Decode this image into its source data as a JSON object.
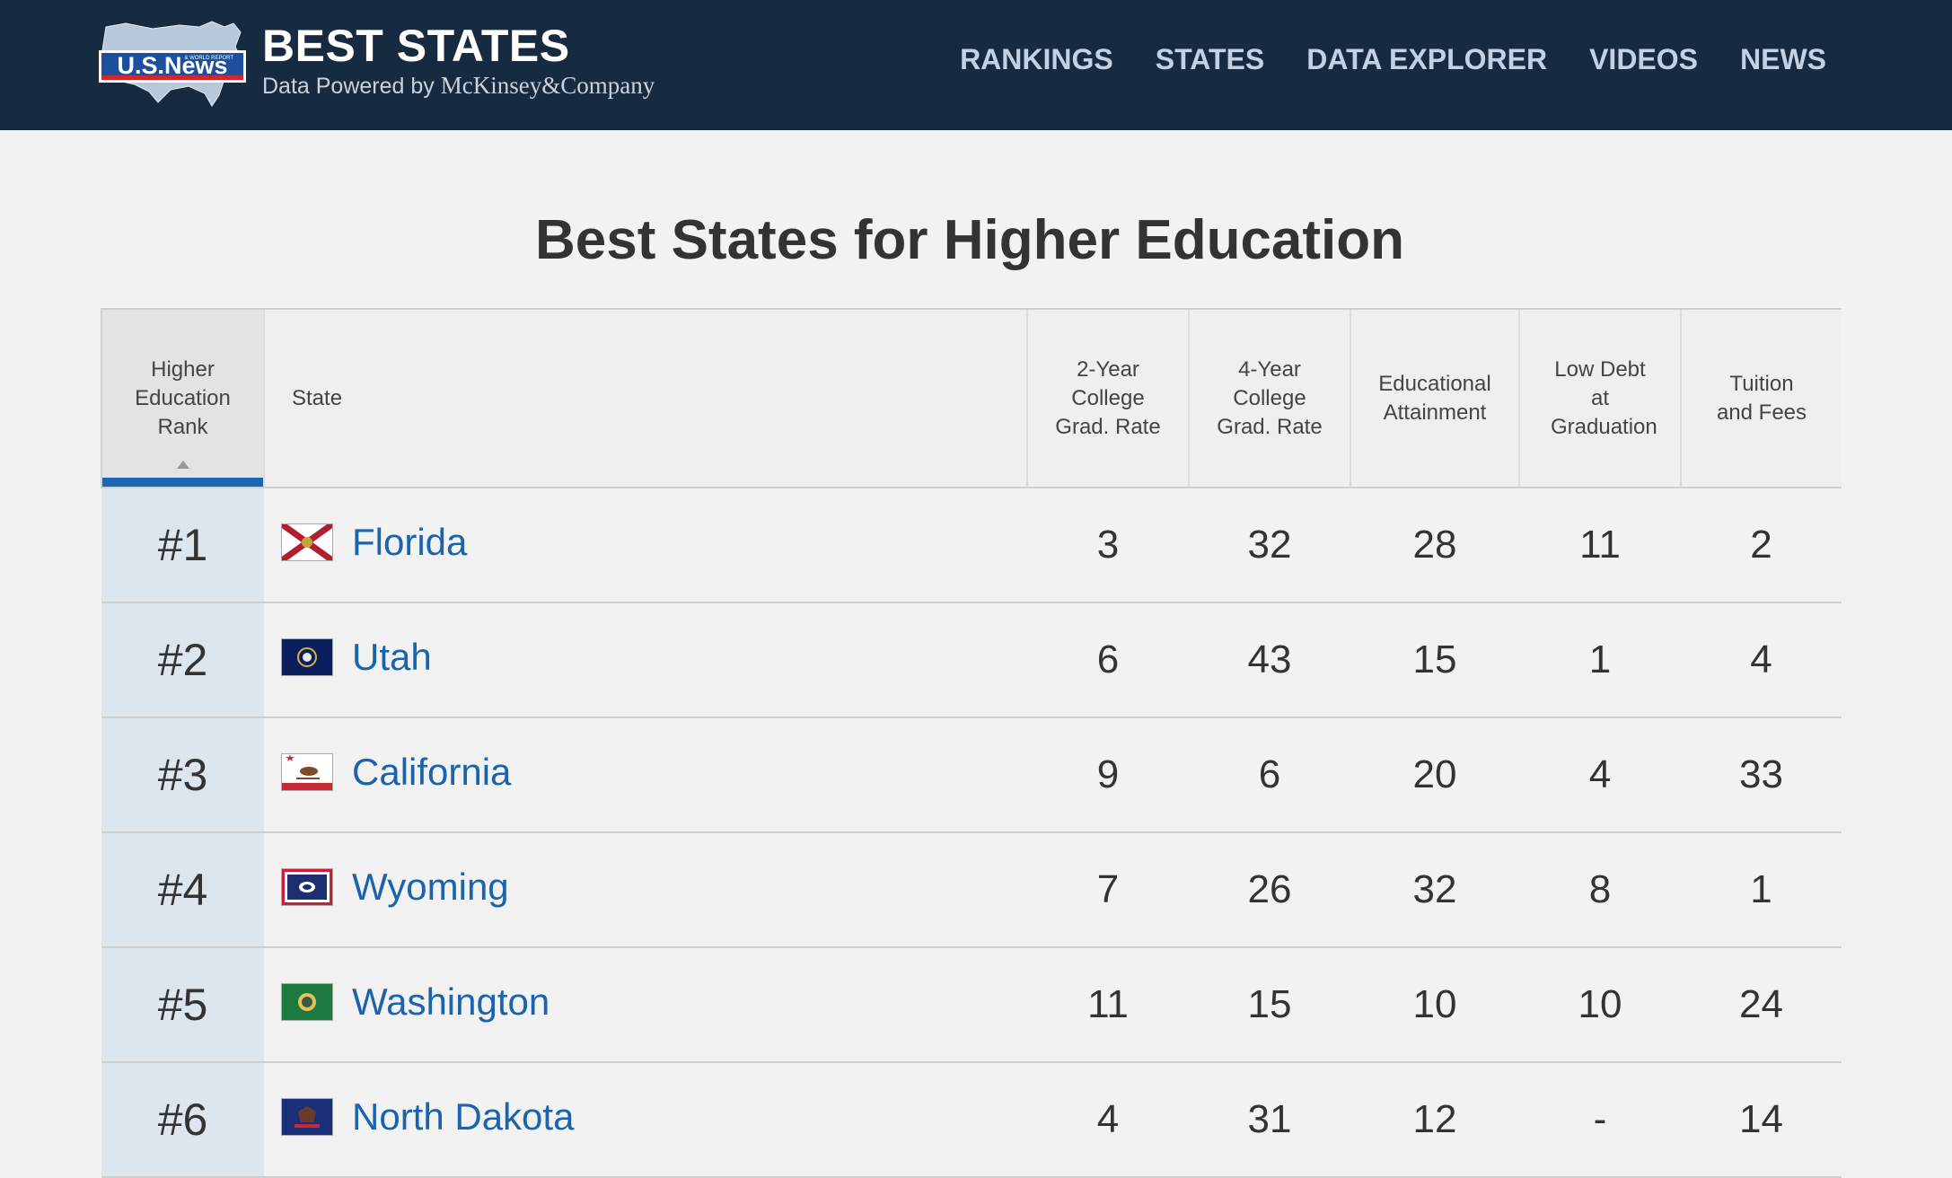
{
  "header": {
    "logo_text": "U.S.News",
    "logo_small_text": "& WORLD REPORT",
    "title": "BEST STATES",
    "subtitle_prefix": "Data Powered by",
    "subtitle_company": "McKinsey&Company",
    "nav": [
      "RANKINGS",
      "STATES",
      "DATA EXPLORER",
      "VIDEOS",
      "NEWS"
    ],
    "colors": {
      "bar": "#172b40",
      "nav_text": "#c3d2e3"
    }
  },
  "page_title": "Best States for Higher Education",
  "table": {
    "columns": [
      "Higher Education Rank",
      "State",
      "2-Year College Grad. Rate",
      "4-Year College Grad. Rate",
      "Educational Attainment",
      "Low Debt at Graduation",
      "Tuition and Fees"
    ],
    "sorted_by": "Higher Education Rank",
    "sort_direction": "ascending",
    "rows": [
      {
        "rank": "#1",
        "state": "Florida",
        "flag": "florida-flag-icon",
        "values": [
          "3",
          "32",
          "28",
          "11",
          "2"
        ]
      },
      {
        "rank": "#2",
        "state": "Utah",
        "flag": "utah-flag-icon",
        "values": [
          "6",
          "43",
          "15",
          "1",
          "4"
        ]
      },
      {
        "rank": "#3",
        "state": "California",
        "flag": "california-flag-icon",
        "values": [
          "9",
          "6",
          "20",
          "4",
          "33"
        ]
      },
      {
        "rank": "#4",
        "state": "Wyoming",
        "flag": "wyoming-flag-icon",
        "values": [
          "7",
          "26",
          "32",
          "8",
          "1"
        ]
      },
      {
        "rank": "#5",
        "state": "Washington",
        "flag": "washington-flag-icon",
        "values": [
          "11",
          "15",
          "10",
          "10",
          "24"
        ]
      },
      {
        "rank": "#6",
        "state": "North Dakota",
        "flag": "north-dakota-flag-icon",
        "values": [
          "4",
          "31",
          "12",
          "-",
          "14"
        ]
      }
    ],
    "colors": {
      "link": "#1a63ad",
      "rank_cell": "#dde6ee",
      "sort_indicator": "#1c66b2"
    }
  }
}
